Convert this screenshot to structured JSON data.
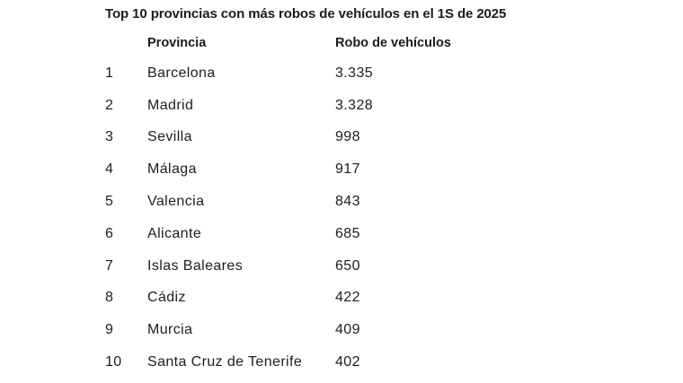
{
  "title": "Top 10 provincias con más robos de vehículos en el 1S de 2025",
  "colors": {
    "background": "#ffffff",
    "text": "#1c1c1c"
  },
  "table": {
    "headers": {
      "province": "Provincia",
      "value": "Robo de vehículos"
    },
    "rows": [
      {
        "rank": "1",
        "province": "Barcelona",
        "value": "3.335"
      },
      {
        "rank": "2",
        "province": "Madrid",
        "value": "3.328"
      },
      {
        "rank": "3",
        "province": "Sevilla",
        "value": "998"
      },
      {
        "rank": "4",
        "province": "Málaga",
        "value": "917"
      },
      {
        "rank": "5",
        "province": "Valencia",
        "value": "843"
      },
      {
        "rank": "6",
        "province": "Alicante",
        "value": "685"
      },
      {
        "rank": "7",
        "province": "Islas Baleares",
        "value": "650"
      },
      {
        "rank": "8",
        "province": "Cádiz",
        "value": "422"
      },
      {
        "rank": "9",
        "province": "Murcia",
        "value": "409"
      },
      {
        "rank": "10",
        "province": "Santa Cruz de Tenerife",
        "value": "402"
      }
    ]
  },
  "chart_data": {
    "type": "table",
    "title": "Top 10 provincias con más robos de vehículos en el 1S de 2025",
    "columns": [
      "Provincia",
      "Robo de vehículos"
    ],
    "categories": [
      "Barcelona",
      "Madrid",
      "Sevilla",
      "Málaga",
      "Valencia",
      "Alicante",
      "Islas Baleares",
      "Cádiz",
      "Murcia",
      "Santa Cruz de Tenerife"
    ],
    "values": [
      3335,
      3328,
      998,
      917,
      843,
      685,
      650,
      422,
      409,
      402
    ],
    "value_labels": [
      "3.335",
      "3.328",
      "998",
      "917",
      "843",
      "685",
      "650",
      "422",
      "409",
      "402"
    ],
    "ranks": [
      1,
      2,
      3,
      4,
      5,
      6,
      7,
      8,
      9,
      10
    ]
  }
}
